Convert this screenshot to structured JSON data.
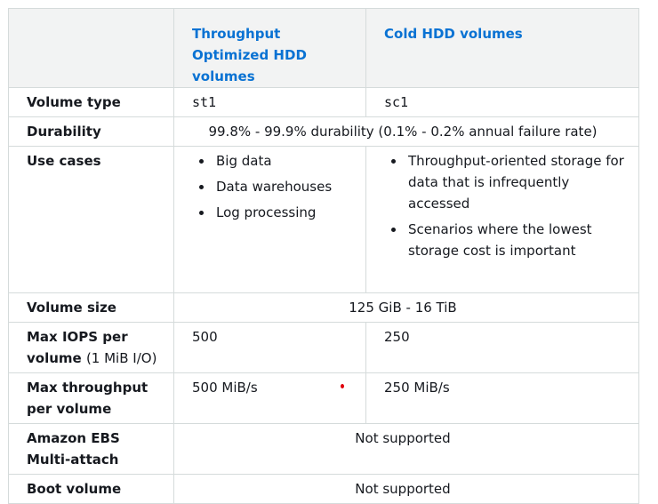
{
  "table": {
    "headers": [
      "",
      "Throughput Optimized HDD volumes",
      "Cold HDD volumes"
    ],
    "volume_type": {
      "label": "Volume type",
      "st1": "st1",
      "sc1": "sc1"
    },
    "durability": {
      "label": "Durability",
      "value": "99.8% - 99.9% durability (0.1% - 0.2% annual failure rate)"
    },
    "use_cases": {
      "label": "Use cases",
      "st1": [
        "Big data",
        "Data warehouses",
        "Log processing"
      ],
      "sc1": [
        "Throughput-oriented storage for data that is infrequently accessed",
        "Scenarios where the lowest storage cost is important"
      ]
    },
    "volume_size": {
      "label": "Volume size",
      "value": "125 GiB - 16 TiB"
    },
    "max_iops": {
      "label": "Max IOPS per volume",
      "label_suffix": "(1 MiB I/O)",
      "st1": "500",
      "sc1": "250"
    },
    "max_throughput": {
      "label": "Max throughput per volume",
      "st1": "500 MiB/s",
      "sc1": "250 MiB/s"
    },
    "multi_attach": {
      "label": "Amazon EBS Multi-attach",
      "value": "Not supported"
    },
    "boot_volume": {
      "label": "Boot volume",
      "value": "Not supported"
    }
  },
  "colors": {
    "header_link": "#0972d3",
    "header_bg": "#f2f3f3",
    "border": "#d5dbdb",
    "text": "#16191f",
    "marker_dot": "#e0000b"
  }
}
